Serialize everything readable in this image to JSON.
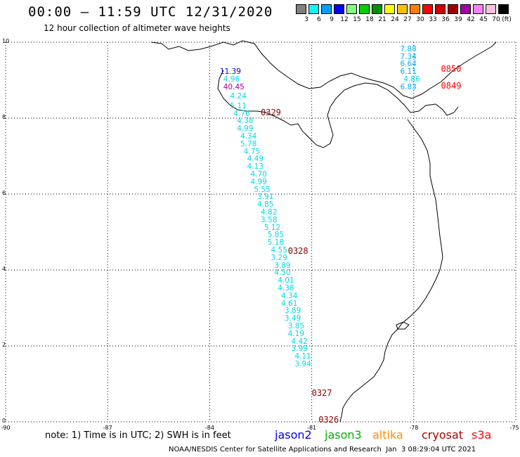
{
  "header": {
    "title": "00:00 – 11:59 UTC 12/31/2020",
    "subtitle": "12 hour collection of altimeter wave heights"
  },
  "colorbar": {
    "unit": "(ft)",
    "swatches": [
      {
        "color": "#808080",
        "label": "3"
      },
      {
        "color": "#00ffff",
        "label": "6"
      },
      {
        "color": "#00a0ff",
        "label": "9"
      },
      {
        "color": "#0000ff",
        "label": "12"
      },
      {
        "color": "#80ff80",
        "label": "15"
      },
      {
        "color": "#00d000",
        "label": "18"
      },
      {
        "color": "#009000",
        "label": "21"
      },
      {
        "color": "#ffff00",
        "label": "24"
      },
      {
        "color": "#ffc000",
        "label": "27"
      },
      {
        "color": "#ff8000",
        "label": "30"
      },
      {
        "color": "#ff0000",
        "label": "33"
      },
      {
        "color": "#d00000",
        "label": "36"
      },
      {
        "color": "#a00000",
        "label": "39"
      },
      {
        "color": "#a000a0",
        "label": "42"
      },
      {
        "color": "#ff80ff",
        "label": "45"
      },
      {
        "color": "#ffc0e0",
        "label": "70"
      },
      {
        "color": "#000000",
        "label": ""
      }
    ]
  },
  "map": {
    "lon_range": [
      -90,
      -75
    ],
    "lat_range": [
      0,
      10
    ],
    "x_ticks": [
      "-90",
      "-87",
      "-84",
      "-81",
      "-78",
      "-75"
    ],
    "y_ticks": [
      "10",
      "8",
      "6",
      "4",
      "2",
      "0"
    ]
  },
  "swh_labels": [
    {
      "text": "7.88",
      "color": "#00b0f0",
      "lon": -78.4,
      "lat": 9.8
    },
    {
      "text": "7.34",
      "color": "#00b0f0",
      "lon": -78.4,
      "lat": 9.6
    },
    {
      "text": "6.64",
      "color": "#00b0f0",
      "lon": -78.4,
      "lat": 9.4
    },
    {
      "text": "6.11",
      "color": "#00b0f0",
      "lon": -78.4,
      "lat": 9.2
    },
    {
      "text": "4.86",
      "color": "#00d8e8",
      "lon": -78.3,
      "lat": 9.0
    },
    {
      "text": "6.83",
      "color": "#00b0f0",
      "lon": -78.4,
      "lat": 8.8
    },
    {
      "text": "11.39",
      "color": "#0000d0",
      "lon": -83.7,
      "lat": 9.2
    },
    {
      "text": "4.96",
      "color": "#00d8e8",
      "lon": -83.6,
      "lat": 9.0
    },
    {
      "text": "40.45",
      "color": "#a000a0",
      "lon": -83.6,
      "lat": 8.8
    },
    {
      "text": "4.24",
      "color": "#00d8e8",
      "lon": -83.4,
      "lat": 8.55
    },
    {
      "text": "5.11",
      "color": "#00d8e8",
      "lon": -83.4,
      "lat": 8.3
    },
    {
      "text": "4.76",
      "color": "#00d8e8",
      "lon": -83.3,
      "lat": 8.1
    },
    {
      "text": "4.38",
      "color": "#00d8e8",
      "lon": -83.2,
      "lat": 7.9
    },
    {
      "text": "4.99",
      "color": "#00d8e8",
      "lon": -83.2,
      "lat": 7.7
    },
    {
      "text": "4.34",
      "color": "#00d8e8",
      "lon": -83.1,
      "lat": 7.5
    },
    {
      "text": "5.78",
      "color": "#00d8e8",
      "lon": -83.1,
      "lat": 7.3
    },
    {
      "text": "4.75",
      "color": "#00d8e8",
      "lon": -83.0,
      "lat": 7.1
    },
    {
      "text": "4.49",
      "color": "#00d8e8",
      "lon": -82.9,
      "lat": 6.9
    },
    {
      "text": "4.13",
      "color": "#00d8e8",
      "lon": -82.9,
      "lat": 6.7
    },
    {
      "text": "4.70",
      "color": "#00d8e8",
      "lon": -82.8,
      "lat": 6.5
    },
    {
      "text": "4.99",
      "color": "#00d8e8",
      "lon": -82.8,
      "lat": 6.3
    },
    {
      "text": "5.55",
      "color": "#00d8e8",
      "lon": -82.7,
      "lat": 6.1
    },
    {
      "text": "3.91",
      "color": "#00d8e8",
      "lon": -82.6,
      "lat": 5.9
    },
    {
      "text": "4.85",
      "color": "#00d8e8",
      "lon": -82.6,
      "lat": 5.7
    },
    {
      "text": "4.82",
      "color": "#00d8e8",
      "lon": -82.5,
      "lat": 5.5
    },
    {
      "text": "3.58",
      "color": "#00d8e8",
      "lon": -82.5,
      "lat": 5.3
    },
    {
      "text": "5.12",
      "color": "#00d8e8",
      "lon": -82.4,
      "lat": 5.1
    },
    {
      "text": "5.85",
      "color": "#00d8e8",
      "lon": -82.3,
      "lat": 4.9
    },
    {
      "text": "5.18",
      "color": "#00d8e8",
      "lon": -82.3,
      "lat": 4.7
    },
    {
      "text": "4.55",
      "color": "#00d8e8",
      "lon": -82.2,
      "lat": 4.5
    },
    {
      "text": "3.29",
      "color": "#00d8e8",
      "lon": -82.2,
      "lat": 4.3
    },
    {
      "text": "3.89",
      "color": "#00d8e8",
      "lon": -82.1,
      "lat": 4.1
    },
    {
      "text": "4.50",
      "color": "#00d8e8",
      "lon": -82.1,
      "lat": 3.9
    },
    {
      "text": "4.01",
      "color": "#00d8e8",
      "lon": -82.0,
      "lat": 3.7
    },
    {
      "text": "4.38",
      "color": "#00d8e8",
      "lon": -82.0,
      "lat": 3.5
    },
    {
      "text": "4.34",
      "color": "#00d8e8",
      "lon": -81.9,
      "lat": 3.3
    },
    {
      "text": "4.61",
      "color": "#00d8e8",
      "lon": -81.9,
      "lat": 3.1
    },
    {
      "text": "3.89",
      "color": "#00d8e8",
      "lon": -81.8,
      "lat": 2.9
    },
    {
      "text": "3.49",
      "color": "#00d8e8",
      "lon": -81.8,
      "lat": 2.7
    },
    {
      "text": "3.85",
      "color": "#00d8e8",
      "lon": -81.7,
      "lat": 2.5
    },
    {
      "text": "4.19",
      "color": "#00d8e8",
      "lon": -81.7,
      "lat": 2.3
    },
    {
      "text": "4.42",
      "color": "#00d8e8",
      "lon": -81.6,
      "lat": 2.1
    },
    {
      "text": "3.99",
      "color": "#00d8e8",
      "lon": -81.6,
      "lat": 1.9
    },
    {
      "text": "4.11",
      "color": "#00d8e8",
      "lon": -81.5,
      "lat": 1.7
    },
    {
      "text": "3.94",
      "color": "#00d8e8",
      "lon": -81.5,
      "lat": 1.5
    }
  ],
  "pass_times": [
    {
      "text": "0850",
      "color": "#ff0000",
      "lon": -77.2,
      "lat": 9.25
    },
    {
      "text": "0849",
      "color": "#ff0000",
      "lon": -77.2,
      "lat": 8.8
    },
    {
      "text": "0329",
      "color": "#8b0000",
      "lon": -82.5,
      "lat": 8.1
    },
    {
      "text": "0328",
      "color": "#8b0000",
      "lon": -81.7,
      "lat": 4.45
    },
    {
      "text": "0327",
      "color": "#8b0000",
      "lon": -81.0,
      "lat": 0.7
    },
    {
      "text": "0326",
      "color": "#8b0000",
      "lon": -80.8,
      "lat": 0.0
    }
  ],
  "footer": {
    "note": "note: 1) Time is in UTC; 2) SWH is in feet",
    "legend": [
      {
        "label": "jason2",
        "color": "#0000ff"
      },
      {
        "label": "jason3",
        "color": "#00b000"
      },
      {
        "label": "altika",
        "color": "#ff8c00"
      },
      {
        "label": "cryosat",
        "color": "#b00000"
      },
      {
        "label": "s3a",
        "color": "#ff0000"
      }
    ],
    "credit": "NOAA/NESDIS Center for Satellite Applications and Research  Jan  3 08:29:04 UTC 2021"
  }
}
